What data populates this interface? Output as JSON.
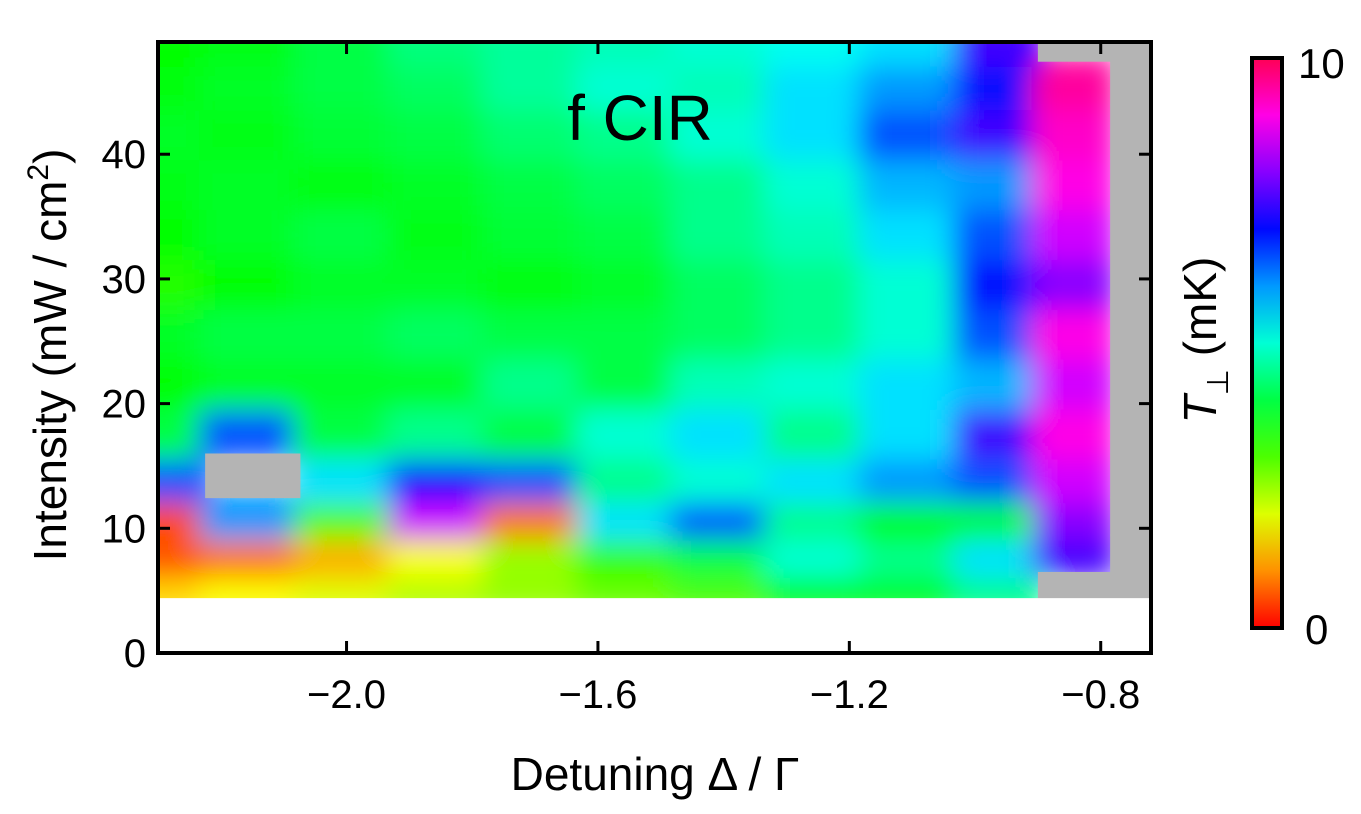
{
  "chart_data": {
    "type": "heatmap",
    "title": "f CIR",
    "xlabel": "Detuning Δ / Γ",
    "ylabel": "Intensity (mW / cm²)",
    "ylabel_main": "Intensity (mW / cm",
    "ylabel_sup": "2",
    "ylabel_end": ")",
    "xlim": [
      -2.3,
      -0.72
    ],
    "ylim": [
      0,
      49
    ],
    "xticks": [
      -2.0,
      -1.6,
      -1.2,
      -0.8
    ],
    "xtick_labels": [
      "−2.0",
      "−1.6",
      "−1.2",
      "−0.8"
    ],
    "yticks": [
      0,
      10,
      20,
      30,
      40
    ],
    "ytick_labels": [
      "0",
      "10",
      "20",
      "30",
      "40"
    ],
    "colorbar": {
      "label": "T⊥ (mK)",
      "label_symbol": "T",
      "label_sub": "⊥",
      "label_unit": " (mK)",
      "min": 0,
      "max": 10,
      "min_label": "0",
      "max_label": "10",
      "colormap": "hue (red-yellow-green-cyan-blue-magenta-red)"
    },
    "no_data_color": "#b4b4b4",
    "x": [
      -2.3,
      -2.15,
      -2.0,
      -1.85,
      -1.7,
      -1.55,
      -1.4,
      -1.25,
      -1.1,
      -0.95,
      -0.85,
      -0.72
    ],
    "y": [
      5,
      8,
      11,
      14,
      18,
      22,
      26,
      30,
      34,
      38,
      42,
      46,
      49
    ],
    "z": [
      [
        1.5,
        1.8,
        2.0,
        2.3,
        2.5,
        2.8,
        3.0,
        3.5,
        3.8,
        4.5,
        null,
        null
      ],
      [
        0.6,
        0.8,
        1.2,
        1.8,
        2.5,
        3.2,
        4.0,
        5.0,
        4.5,
        5.5,
        7.5,
        null
      ],
      [
        0.5,
        6.0,
        3.0,
        8.5,
        0.8,
        5.5,
        6.5,
        4.5,
        3.5,
        3.8,
        8.0,
        null
      ],
      [
        6.5,
        null,
        5.5,
        7.0,
        6.5,
        4.5,
        5.0,
        5.5,
        6.0,
        6.5,
        8.5,
        null
      ],
      [
        4.0,
        6.5,
        4.0,
        4.5,
        4.0,
        5.0,
        5.5,
        4.5,
        5.5,
        7.5,
        9.0,
        null
      ],
      [
        3.5,
        3.8,
        3.8,
        3.8,
        4.5,
        4.0,
        4.8,
        5.0,
        5.5,
        5.8,
        8.5,
        null
      ],
      [
        3.8,
        4.0,
        4.0,
        4.2,
        4.0,
        4.0,
        4.2,
        4.5,
        5.0,
        6.5,
        9.0,
        null
      ],
      [
        3.3,
        3.5,
        3.8,
        3.8,
        3.6,
        3.8,
        4.2,
        4.5,
        5.0,
        7.0,
        8.0,
        null
      ],
      [
        3.5,
        3.8,
        4.0,
        3.7,
        3.9,
        4.0,
        4.5,
        4.8,
        5.5,
        6.5,
        8.5,
        null
      ],
      [
        3.7,
        3.8,
        3.6,
        3.8,
        4.0,
        4.2,
        4.5,
        5.0,
        5.8,
        6.0,
        9.0,
        null
      ],
      [
        3.8,
        3.7,
        3.9,
        4.0,
        4.3,
        4.5,
        5.0,
        5.5,
        6.5,
        7.5,
        9.2,
        null
      ],
      [
        3.6,
        3.8,
        4.0,
        4.2,
        4.6,
        5.0,
        4.8,
        5.5,
        6.0,
        7.0,
        9.5,
        null
      ],
      [
        3.5,
        3.7,
        4.0,
        4.4,
        4.6,
        4.8,
        5.0,
        5.2,
        5.5,
        7.5,
        null,
        null
      ]
    ]
  }
}
